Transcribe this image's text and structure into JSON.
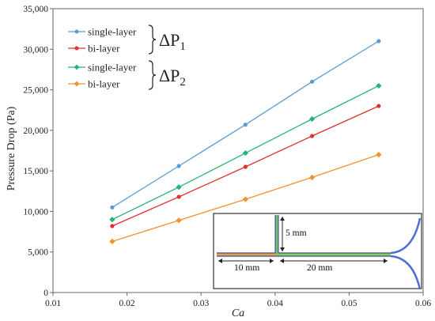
{
  "chart_data": {
    "type": "line",
    "xlabel": "Ca",
    "ylabel": "Pressure Drop (Pa)",
    "xlim": [
      0.01,
      0.06
    ],
    "ylim": [
      0,
      35000
    ],
    "xticks": [
      "0.01",
      "0.02",
      "0.03",
      "0.04",
      "0.05",
      "0.06"
    ],
    "yticks": [
      "0",
      "5,000",
      "10,000",
      "15,000",
      "20,000",
      "25,000",
      "30,000",
      "35,000"
    ],
    "x": [
      0.018,
      0.027,
      0.036,
      0.045,
      0.054
    ],
    "series": [
      {
        "name": "single-layer",
        "group": "ΔP1",
        "color": "#5b9bd5",
        "values": [
          10500,
          15600,
          20700,
          26000,
          31000
        ]
      },
      {
        "name": "bi-layer",
        "group": "ΔP1",
        "color": "#e03030",
        "values": [
          8200,
          11800,
          15500,
          19300,
          23000
        ]
      },
      {
        "name": "single-layer",
        "group": "ΔP2",
        "color": "#22b573",
        "values": [
          9000,
          13000,
          17200,
          21400,
          25500
        ]
      },
      {
        "name": "bi-layer",
        "group": "ΔP2",
        "color": "#f0922e",
        "values": [
          6300,
          8900,
          11500,
          14200,
          17000
        ]
      }
    ],
    "group_labels": [
      {
        "main": "ΔP",
        "sub": "1"
      },
      {
        "main": "ΔP",
        "sub": "2"
      }
    ],
    "grid": false,
    "legend": "top-left"
  },
  "inset": {
    "dims": [
      "10 mm",
      "20 mm",
      "5 mm"
    ]
  }
}
